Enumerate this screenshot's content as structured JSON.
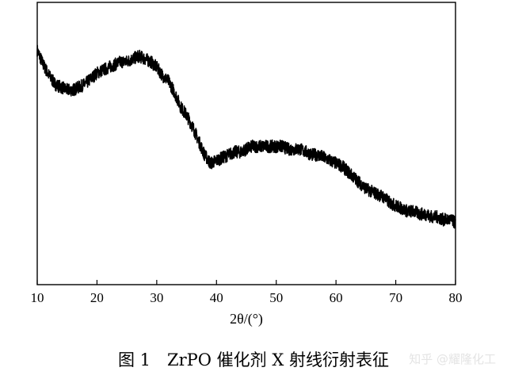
{
  "chart_data": {
    "type": "line",
    "title": "",
    "xlabel": "2θ/(°)",
    "ylabel": "",
    "xlim": [
      10,
      80
    ],
    "xticks": [
      10,
      20,
      30,
      40,
      50,
      60,
      70,
      80
    ],
    "yticks_shown": false,
    "grid": false,
    "series": [
      {
        "x": [
          10,
          11,
          12,
          13,
          14,
          15,
          16,
          17,
          18,
          19,
          20,
          21,
          22,
          23,
          24,
          25,
          26,
          27,
          28,
          29,
          30,
          31,
          32,
          33,
          34,
          35,
          36,
          37,
          38,
          39,
          40,
          41,
          42,
          43,
          44,
          45,
          46,
          47,
          48,
          49,
          50,
          51,
          52,
          53,
          54,
          55,
          56,
          57,
          58,
          59,
          60,
          61,
          62,
          63,
          64,
          65,
          66,
          67,
          68,
          69,
          70,
          71,
          72,
          73,
          74,
          75,
          76,
          77,
          78,
          79,
          80
        ],
        "y": [
          0.83,
          0.78,
          0.74,
          0.71,
          0.7,
          0.69,
          0.69,
          0.7,
          0.71,
          0.73,
          0.75,
          0.76,
          0.77,
          0.78,
          0.79,
          0.79,
          0.8,
          0.81,
          0.8,
          0.79,
          0.77,
          0.74,
          0.72,
          0.68,
          0.63,
          0.6,
          0.56,
          0.51,
          0.46,
          0.43,
          0.44,
          0.45,
          0.46,
          0.47,
          0.47,
          0.48,
          0.49,
          0.49,
          0.49,
          0.49,
          0.49,
          0.49,
          0.48,
          0.48,
          0.48,
          0.47,
          0.46,
          0.46,
          0.45,
          0.44,
          0.43,
          0.42,
          0.4,
          0.38,
          0.36,
          0.34,
          0.33,
          0.32,
          0.31,
          0.29,
          0.28,
          0.27,
          0.26,
          0.26,
          0.25,
          0.25,
          0.24,
          0.24,
          0.23,
          0.23,
          0.22
        ]
      }
    ]
  },
  "caption": "图 1　ZrPO 催化剂 X 射线衍射表征",
  "watermark": "知乎 @耀隆化工",
  "colors": {
    "line": "#000000",
    "axis": "#000000"
  }
}
